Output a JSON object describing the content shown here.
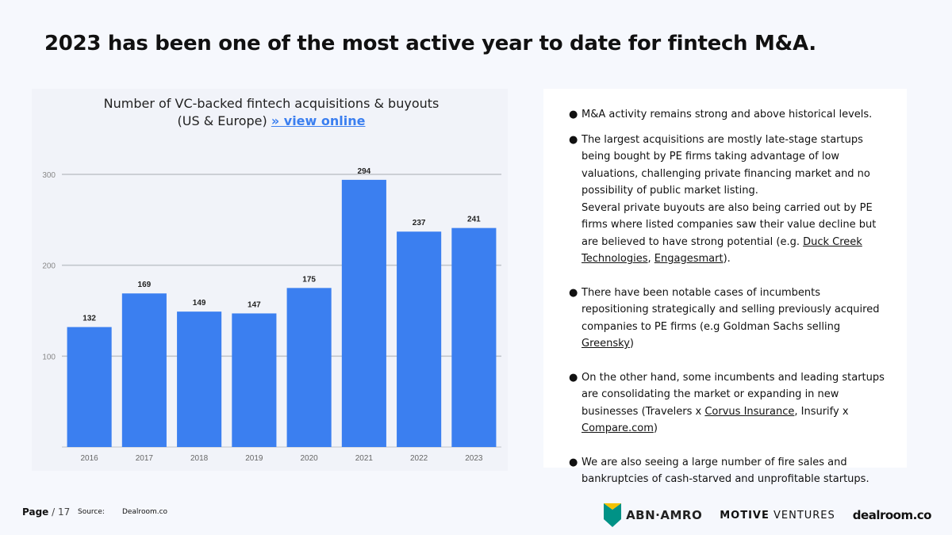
{
  "header": {
    "title": "2023 has been one of the most active year to date for fintech M&A."
  },
  "chart_data": {
    "type": "bar",
    "title_line1": "Number of VC-backed fintech acquisitions & buyouts",
    "title_line2": "(US & Europe)",
    "title_link": "» view online",
    "categories": [
      "2016",
      "2017",
      "2018",
      "2019",
      "2020",
      "2021",
      "2022",
      "2023"
    ],
    "values": [
      132,
      169,
      149,
      147,
      175,
      294,
      237,
      241
    ],
    "yticks": [
      100,
      200,
      300
    ],
    "ylim": [
      0,
      300
    ],
    "xlabel": "",
    "ylabel": "",
    "grid": true,
    "color": "#3b7ff0"
  },
  "notes": {
    "bullet": "●",
    "p1": "M&A activity remains strong and above historical levels.",
    "p2a": "The largest acquisitions are mostly late-stage startups being bought by PE firms taking advantage of low valuations, challenging private financing market and no possibility of public market listing.",
    "p2b": "Several private buyouts are also being carried out by PE firms where listed companies saw their value decline but are believed to have strong potential (e.g. ",
    "p2_link1": "Duck Creek Technologies",
    "p2_sep": ", ",
    "p2_link2": "Engagesmart",
    "p2_end": ").",
    "p3": "There have been notable cases of incumbents repositioning strategically and selling previously acquired companies to PE firms (e.g Goldman Sachs selling ",
    "p3_link": "Greensky",
    "p3_end": ")",
    "p4": "On the other hand, some incumbents and leading startups are consolidating the market or expanding in new businesses (Travelers x ",
    "p4_link1": "Corvus Insurance",
    "p4_mid": ", Insurify x ",
    "p4_link2": "Compare.com",
    "p4_end": ")",
    "p5": "We are also seeing a large number of  fire sales and bankruptcies of cash-starved and unprofitable startups."
  },
  "footer": {
    "page_label": "Page",
    "page_num": "/ 17",
    "source_label": "Source:",
    "source_value": "Dealroom.co"
  },
  "logos": {
    "abn": "ABN·AMRO",
    "motive_bold": "MOTIVE",
    "motive_rest": " VENTURES",
    "dealroom": "dealroom.co",
    "abn_colors": [
      "#009286",
      "#f4c200"
    ]
  }
}
